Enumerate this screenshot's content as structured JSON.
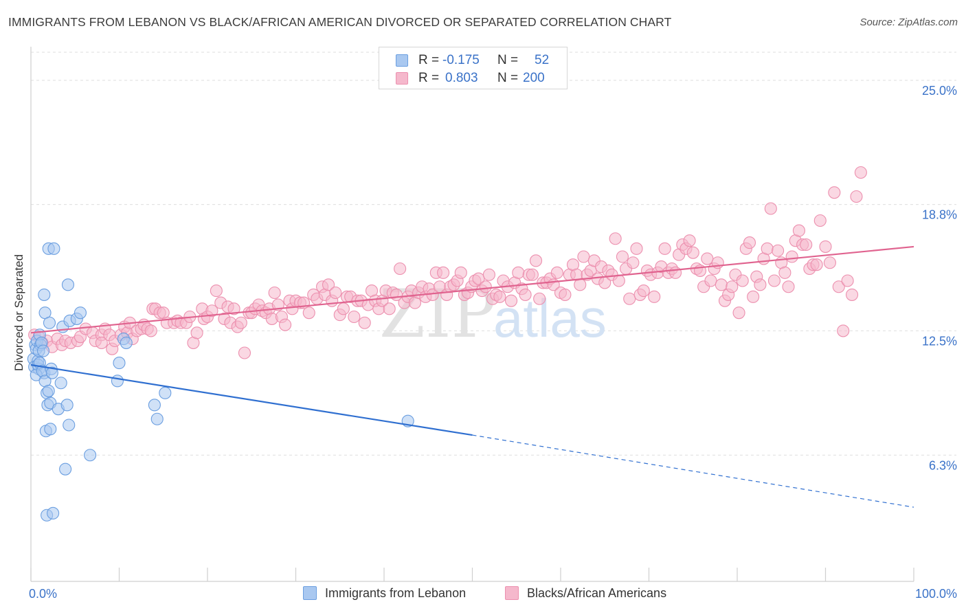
{
  "header": {
    "title": "IMMIGRANTS FROM LEBANON VS BLACK/AFRICAN AMERICAN DIVORCED OR SEPARATED CORRELATION CHART",
    "source": "Source: ZipAtlas.com"
  },
  "legend": {
    "rows": [
      {
        "r_label": "R =",
        "r_value": "-0.175",
        "n_label": "N =",
        "n_value": "52"
      },
      {
        "r_label": "R =",
        "r_value": "0.803",
        "n_label": "N =",
        "n_value": "200"
      }
    ]
  },
  "watermark": {
    "part1": "ZIP",
    "part2": "atlas"
  },
  "colors": {
    "blue_fill": "#a9c8f0",
    "blue_stroke": "#6a9ee0",
    "blue_line": "#2f6fd0",
    "pink_fill": "#f5b8cc",
    "pink_stroke": "#ec8fae",
    "pink_line": "#e0638f",
    "axis_text": "#3a72c8",
    "grid": "#dedede"
  },
  "chart_data": {
    "type": "scatter",
    "title": "IMMIGRANTS FROM LEBANON VS BLACK/AFRICAN AMERICAN DIVORCED OR SEPARATED CORRELATION CHART",
    "xlabel": "",
    "ylabel": "Divorced or Separated",
    "xlim": [
      0,
      100
    ],
    "ylim": [
      0,
      26.4
    ],
    "x_tick_labels": [
      {
        "value": 0,
        "label": "0.0%"
      },
      {
        "value": 100,
        "label": "100.0%"
      }
    ],
    "y_ticks": [
      {
        "value": 6.3,
        "label": "6.3%"
      },
      {
        "value": 12.5,
        "label": "12.5%"
      },
      {
        "value": 18.8,
        "label": "18.8%"
      },
      {
        "value": 25.0,
        "label": "25.0%"
      }
    ],
    "grid": true,
    "legend_position": "top-center",
    "series": [
      {
        "name": "Immigrants from Lebanon",
        "color": "#a9c8f0",
        "r": -0.175,
        "n": 52,
        "trend": {
          "x": [
            0,
            50
          ],
          "y": [
            10.8,
            7.3
          ],
          "dashed_to_x": 100,
          "dashed_end_y": 3.7
        },
        "points": [
          [
            0.3,
            11.1
          ],
          [
            0.4,
            10.7
          ],
          [
            0.5,
            11.8
          ],
          [
            0.6,
            11.6
          ],
          [
            0.8,
            11.0
          ],
          [
            0.9,
            10.6
          ],
          [
            0.7,
            12.0
          ],
          [
            1.0,
            12.3
          ],
          [
            1.1,
            11.8
          ],
          [
            0.9,
            11.5
          ],
          [
            1.2,
            11.9
          ],
          [
            1.4,
            11.5
          ],
          [
            0.8,
            10.8
          ],
          [
            1.0,
            10.9
          ],
          [
            1.5,
            10.4
          ],
          [
            0.6,
            10.3
          ],
          [
            1.3,
            10.5
          ],
          [
            1.5,
            14.3
          ],
          [
            1.6,
            13.4
          ],
          [
            1.8,
            9.4
          ],
          [
            1.9,
            8.8
          ],
          [
            1.7,
            7.5
          ],
          [
            1.6,
            10.0
          ],
          [
            1.8,
            3.3
          ],
          [
            2.1,
            12.9
          ],
          [
            2.3,
            10.6
          ],
          [
            2.0,
            9.5
          ],
          [
            2.2,
            8.9
          ],
          [
            2.2,
            7.6
          ],
          [
            2.0,
            16.6
          ],
          [
            2.4,
            10.4
          ],
          [
            2.5,
            3.4
          ],
          [
            2.6,
            16.6
          ],
          [
            3.1,
            8.6
          ],
          [
            3.4,
            9.9
          ],
          [
            3.6,
            12.7
          ],
          [
            3.9,
            5.6
          ],
          [
            4.1,
            8.8
          ],
          [
            4.3,
            7.8
          ],
          [
            4.2,
            14.8
          ],
          [
            4.4,
            13.0
          ],
          [
            5.2,
            13.1
          ],
          [
            5.6,
            13.4
          ],
          [
            6.7,
            6.3
          ],
          [
            9.8,
            10.0
          ],
          [
            10.0,
            10.9
          ],
          [
            10.5,
            12.1
          ],
          [
            10.8,
            11.9
          ],
          [
            14.0,
            8.8
          ],
          [
            14.3,
            8.1
          ],
          [
            15.2,
            9.4
          ],
          [
            42.7,
            8.0
          ]
        ]
      },
      {
        "name": "Blacks/African Americans",
        "color": "#f5b8cc",
        "r": 0.803,
        "n": 200,
        "trend": {
          "x": [
            0,
            100
          ],
          "y": [
            12.4,
            16.7
          ]
        },
        "points": [
          [
            0.4,
            12.3
          ],
          [
            0.9,
            12.2
          ],
          [
            1.3,
            11.9
          ],
          [
            1.8,
            12.0
          ],
          [
            2.4,
            11.7
          ],
          [
            3.0,
            12.1
          ],
          [
            3.5,
            11.8
          ],
          [
            3.9,
            12.0
          ],
          [
            4.5,
            11.9
          ],
          [
            5.3,
            12.0
          ],
          [
            5.6,
            12.2
          ],
          [
            6.2,
            12.6
          ],
          [
            7.0,
            12.4
          ],
          [
            7.3,
            12.0
          ],
          [
            8.0,
            12.3
          ],
          [
            8.4,
            12.6
          ],
          [
            8.0,
            11.9
          ],
          [
            8.9,
            12.3
          ],
          [
            9.2,
            11.6
          ],
          [
            9.5,
            12.0
          ],
          [
            10.2,
            12.3
          ],
          [
            10.6,
            12.7
          ],
          [
            10.9,
            12.4
          ],
          [
            11.2,
            12.9
          ],
          [
            11.5,
            12.1
          ],
          [
            12.0,
            12.5
          ],
          [
            12.5,
            12.6
          ],
          [
            12.8,
            12.8
          ],
          [
            13.2,
            12.6
          ],
          [
            13.6,
            12.5
          ],
          [
            13.8,
            13.6
          ],
          [
            14.1,
            13.6
          ],
          [
            14.6,
            13.4
          ],
          [
            15.0,
            13.4
          ],
          [
            15.4,
            12.9
          ],
          [
            16.2,
            12.9
          ],
          [
            16.6,
            13.0
          ],
          [
            17.0,
            12.9
          ],
          [
            17.6,
            12.9
          ],
          [
            18.0,
            13.2
          ],
          [
            18.4,
            11.9
          ],
          [
            18.8,
            12.4
          ],
          [
            19.4,
            13.6
          ],
          [
            19.6,
            13.1
          ],
          [
            20.0,
            13.2
          ],
          [
            20.5,
            13.5
          ],
          [
            21.0,
            14.5
          ],
          [
            21.5,
            13.9
          ],
          [
            21.9,
            13.1
          ],
          [
            22.3,
            13.7
          ],
          [
            22.6,
            12.9
          ],
          [
            23.0,
            13.6
          ],
          [
            23.4,
            12.7
          ],
          [
            23.8,
            12.9
          ],
          [
            24.2,
            11.4
          ],
          [
            24.7,
            13.4
          ],
          [
            25.0,
            13.4
          ],
          [
            25.4,
            13.6
          ],
          [
            25.8,
            13.8
          ],
          [
            26.2,
            13.5
          ],
          [
            26.6,
            13.4
          ],
          [
            27.0,
            13.6
          ],
          [
            27.3,
            13.1
          ],
          [
            27.6,
            14.4
          ],
          [
            28.0,
            13.8
          ],
          [
            28.4,
            13.2
          ],
          [
            28.8,
            12.8
          ],
          [
            29.3,
            14.0
          ],
          [
            29.6,
            13.6
          ],
          [
            30.0,
            14.0
          ],
          [
            30.5,
            13.9
          ],
          [
            30.9,
            13.9
          ],
          [
            31.5,
            13.4
          ],
          [
            32.0,
            14.3
          ],
          [
            32.4,
            14.1
          ],
          [
            33.0,
            14.7
          ],
          [
            33.3,
            14.3
          ],
          [
            33.7,
            14.8
          ],
          [
            34.1,
            14.0
          ],
          [
            34.5,
            14.4
          ],
          [
            35.0,
            13.3
          ],
          [
            35.4,
            13.6
          ],
          [
            35.8,
            14.2
          ],
          [
            36.2,
            14.2
          ],
          [
            36.6,
            13.2
          ],
          [
            37.0,
            14.0
          ],
          [
            37.4,
            14.0
          ],
          [
            37.8,
            12.9
          ],
          [
            38.2,
            13.8
          ],
          [
            38.6,
            14.5
          ],
          [
            39.0,
            14.0
          ],
          [
            39.4,
            13.6
          ],
          [
            39.8,
            14.0
          ],
          [
            40.2,
            14.5
          ],
          [
            40.6,
            13.6
          ],
          [
            41.0,
            14.4
          ],
          [
            41.4,
            14.3
          ],
          [
            41.8,
            15.6
          ],
          [
            42.3,
            13.9
          ],
          [
            42.7,
            14.2
          ],
          [
            43.1,
            14.5
          ],
          [
            43.5,
            13.9
          ],
          [
            43.9,
            14.4
          ],
          [
            44.3,
            14.7
          ],
          [
            44.7,
            14.2
          ],
          [
            45.1,
            14.6
          ],
          [
            45.5,
            14.3
          ],
          [
            45.9,
            15.4
          ],
          [
            46.3,
            14.7
          ],
          [
            46.7,
            15.4
          ],
          [
            47.1,
            14.3
          ],
          [
            47.5,
            14.7
          ],
          [
            47.9,
            14.8
          ],
          [
            48.3,
            15.0
          ],
          [
            48.7,
            15.4
          ],
          [
            49.1,
            14.3
          ],
          [
            49.5,
            14.4
          ],
          [
            49.9,
            14.7
          ],
          [
            50.3,
            15.0
          ],
          [
            50.7,
            15.1
          ],
          [
            51.1,
            14.5
          ],
          [
            51.5,
            14.7
          ],
          [
            51.9,
            15.3
          ],
          [
            52.3,
            14.1
          ],
          [
            52.7,
            14.3
          ],
          [
            53.1,
            14.2
          ],
          [
            53.5,
            15.0
          ],
          [
            54.0,
            14.7
          ],
          [
            54.4,
            14.0
          ],
          [
            54.8,
            14.9
          ],
          [
            55.2,
            15.4
          ],
          [
            55.6,
            14.6
          ],
          [
            56.0,
            14.3
          ],
          [
            56.4,
            15.3
          ],
          [
            56.8,
            15.3
          ],
          [
            57.2,
            16.0
          ],
          [
            57.6,
            14.1
          ],
          [
            58.0,
            14.9
          ],
          [
            58.4,
            14.9
          ],
          [
            58.8,
            15.1
          ],
          [
            59.2,
            14.8
          ],
          [
            59.6,
            15.4
          ],
          [
            60.0,
            14.4
          ],
          [
            60.5,
            14.3
          ],
          [
            61.0,
            15.3
          ],
          [
            61.4,
            15.8
          ],
          [
            61.8,
            15.3
          ],
          [
            62.2,
            14.8
          ],
          [
            62.6,
            16.2
          ],
          [
            63.0,
            15.3
          ],
          [
            63.4,
            15.5
          ],
          [
            63.8,
            16.0
          ],
          [
            64.2,
            15.1
          ],
          [
            64.6,
            15.7
          ],
          [
            65.0,
            14.9
          ],
          [
            65.4,
            15.5
          ],
          [
            65.8,
            15.3
          ],
          [
            66.2,
            17.1
          ],
          [
            66.6,
            15.0
          ],
          [
            67.0,
            16.2
          ],
          [
            67.4,
            15.6
          ],
          [
            67.8,
            14.1
          ],
          [
            68.2,
            15.9
          ],
          [
            68.6,
            16.6
          ],
          [
            69.0,
            14.3
          ],
          [
            69.4,
            14.5
          ],
          [
            69.8,
            15.5
          ],
          [
            70.2,
            15.3
          ],
          [
            70.6,
            14.2
          ],
          [
            71.0,
            15.4
          ],
          [
            71.4,
            15.7
          ],
          [
            71.8,
            16.6
          ],
          [
            72.2,
            15.4
          ],
          [
            72.6,
            15.6
          ],
          [
            73.0,
            15.4
          ],
          [
            73.4,
            16.3
          ],
          [
            73.8,
            16.8
          ],
          [
            74.2,
            16.6
          ],
          [
            74.6,
            17.0
          ],
          [
            75.0,
            16.4
          ],
          [
            75.4,
            15.6
          ],
          [
            75.8,
            15.5
          ],
          [
            76.2,
            14.7
          ],
          [
            76.6,
            16.1
          ],
          [
            77.0,
            15.0
          ],
          [
            77.4,
            15.6
          ],
          [
            77.8,
            15.9
          ],
          [
            78.2,
            14.8
          ],
          [
            78.6,
            14.0
          ],
          [
            79.0,
            14.3
          ],
          [
            79.4,
            14.7
          ],
          [
            79.8,
            15.3
          ],
          [
            80.2,
            13.4
          ],
          [
            80.6,
            15.0
          ],
          [
            81.0,
            16.6
          ],
          [
            81.4,
            16.9
          ],
          [
            81.8,
            14.2
          ],
          [
            82.2,
            15.2
          ],
          [
            82.6,
            14.8
          ],
          [
            83.0,
            16.1
          ],
          [
            83.4,
            16.6
          ],
          [
            83.8,
            18.6
          ],
          [
            84.2,
            15.0
          ],
          [
            84.6,
            16.5
          ],
          [
            85.0,
            15.9
          ],
          [
            85.4,
            15.4
          ],
          [
            85.8,
            14.7
          ],
          [
            86.2,
            16.2
          ],
          [
            86.6,
            17.0
          ],
          [
            87.0,
            17.5
          ],
          [
            87.4,
            16.8
          ],
          [
            87.8,
            16.8
          ],
          [
            88.2,
            15.6
          ],
          [
            88.6,
            15.8
          ],
          [
            89.0,
            15.8
          ],
          [
            89.4,
            18.0
          ],
          [
            90.0,
            16.7
          ],
          [
            90.5,
            15.9
          ],
          [
            91.0,
            19.4
          ],
          [
            91.5,
            14.7
          ],
          [
            92.0,
            12.5
          ],
          [
            92.5,
            15.0
          ],
          [
            93.0,
            14.3
          ],
          [
            93.5,
            19.2
          ],
          [
            94.0,
            20.4
          ]
        ]
      }
    ]
  },
  "axis_labels": {
    "y_title": "Divorced or Separated",
    "x_min": "0.0%",
    "x_max": "100.0%",
    "y_ticks": [
      "6.3%",
      "12.5%",
      "18.8%",
      "25.0%"
    ]
  }
}
